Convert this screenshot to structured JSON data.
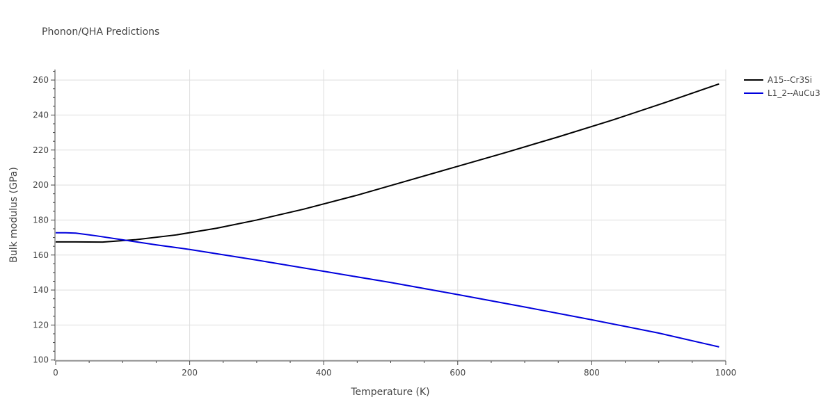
{
  "chart_data": {
    "type": "line",
    "title": "Phonon/QHA Predictions",
    "xlabel": "Temperature (K)",
    "ylabel": "Bulk modulus (GPa)",
    "xlim": [
      0,
      1000
    ],
    "ylim": [
      99.5,
      266
    ],
    "x_ticks": [
      0,
      200,
      400,
      600,
      800,
      1000
    ],
    "y_ticks": [
      100,
      120,
      140,
      160,
      180,
      200,
      220,
      240,
      260
    ],
    "grid": true,
    "legend_position": "top-right",
    "series": [
      {
        "name": "A15--Cr3Si",
        "color": "#000000",
        "x": [
          0,
          30,
          70,
          120,
          180,
          240,
          300,
          370,
          450,
          520,
          590,
          670,
          750,
          830,
          910,
          990
        ],
        "y": [
          167.5,
          167.5,
          167.4,
          168.8,
          171.5,
          175.3,
          180.0,
          186.2,
          194.2,
          201.9,
          209.6,
          218.4,
          227.5,
          237.0,
          247.2,
          257.8
        ]
      },
      {
        "name": "L1_2--AuCu3",
        "color": "#0000dd",
        "x": [
          0,
          15,
          30,
          60,
          100,
          150,
          200,
          300,
          400,
          500,
          600,
          700,
          800,
          900,
          990
        ],
        "y": [
          172.7,
          172.7,
          172.5,
          171.0,
          168.7,
          165.8,
          163.2,
          157.1,
          150.7,
          144.3,
          137.4,
          130.3,
          123.0,
          115.4,
          107.5
        ]
      }
    ]
  }
}
